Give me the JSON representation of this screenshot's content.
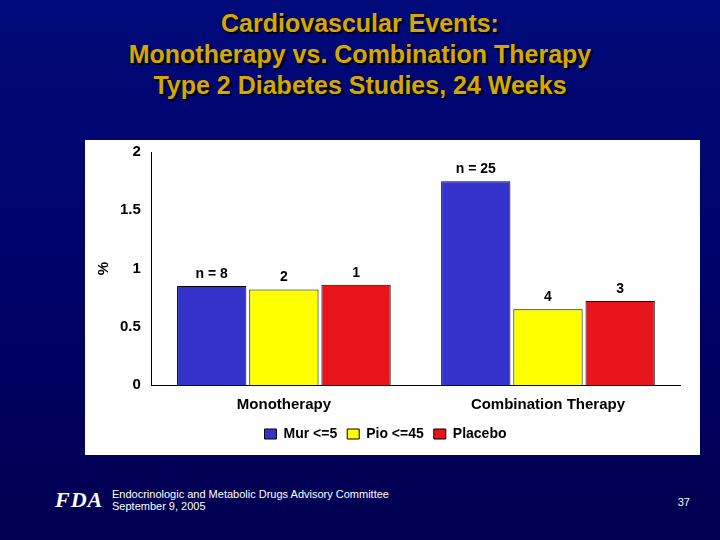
{
  "chart_data": {
    "type": "bar",
    "title": [
      "Cardiovascular Events:",
      "Monotherapy vs. Combination Therapy",
      "Type 2 Diabetes Studies, 24 Weeks"
    ],
    "y_label": "%",
    "categories": [
      "Monotherapy",
      "Combination Therapy"
    ],
    "series": [
      {
        "name": "Mur <=5",
        "color": "#3333cc",
        "values": [
          0.85,
          1.75
        ],
        "n_labels": [
          "n = 8",
          "n = 25"
        ]
      },
      {
        "name": "Pio <=45",
        "color": "#ffff00",
        "values": [
          0.82,
          0.65
        ],
        "n_labels": [
          "2",
          "4"
        ]
      },
      {
        "name": "Placebo",
        "color": "#e8141c",
        "values": [
          0.86,
          0.72
        ],
        "n_labels": [
          "1",
          "3"
        ]
      }
    ],
    "ylim": [
      0,
      2
    ],
    "yticks": [
      0,
      0.5,
      1,
      1.5,
      2
    ],
    "grid": false,
    "legend": "bottom"
  },
  "footer": {
    "logo": "FDA",
    "lines": [
      "Endocrinologic and Metabolic Drugs Advisory Committee",
      "September 9, 2005"
    ],
    "page": "37"
  }
}
